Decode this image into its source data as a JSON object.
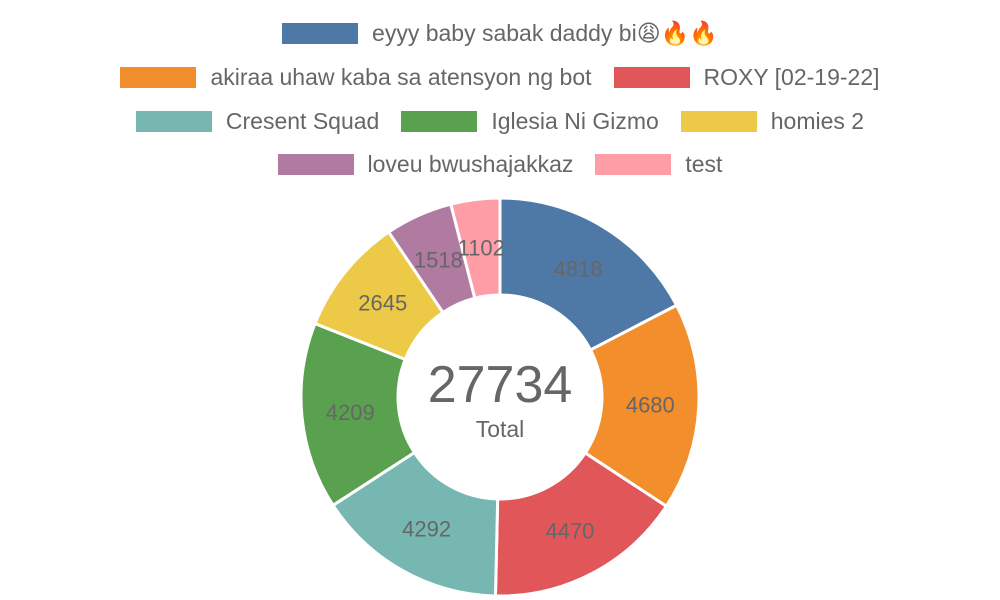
{
  "chart_data": {
    "type": "doughnut",
    "categories": [
      "eyyy baby sabak daddy bi😩🔥🔥",
      "akiraa uhaw kaba sa atensyon ng bot",
      "ROXY [02-19-22]",
      "Cresent Squad",
      "Iglesia Ni Gizmo",
      "homies 2",
      "loveu bwushajakkaz",
      "test"
    ],
    "values": [
      4818,
      4680,
      4470,
      4292,
      4209,
      2645,
      1518,
      1102
    ],
    "colors": [
      "#4e79a7",
      "#f28e2b",
      "#e15759",
      "#76b7b2",
      "#59a14f",
      "#edc948",
      "#b07aa1",
      "#ff9da7"
    ],
    "legend_position": "top",
    "center": {
      "value": "27734",
      "caption": "Total"
    }
  }
}
